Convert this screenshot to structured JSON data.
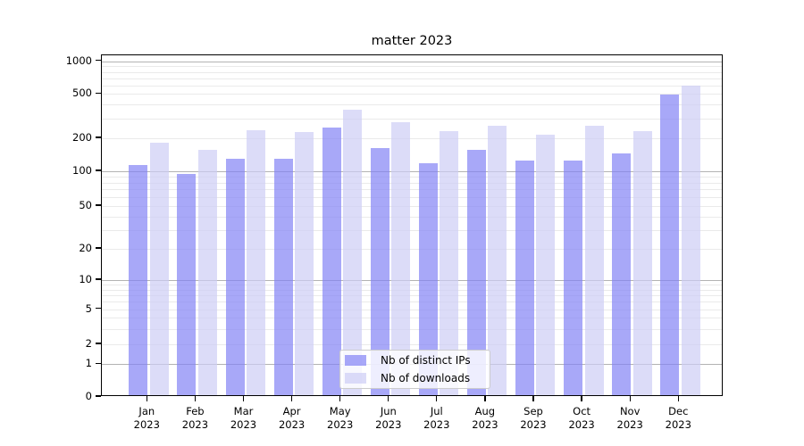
{
  "chart_data": {
    "type": "bar",
    "title": "matter 2023",
    "xlabel": "",
    "ylabel": "",
    "yscale": "symlog",
    "ylim": [
      0,
      1000
    ],
    "grid": true,
    "legend_position": "lower center",
    "y_ticks": [
      0,
      1,
      2,
      5,
      10,
      20,
      50,
      100,
      200,
      500,
      1000
    ],
    "y_minor_gridlines": [
      2,
      3,
      4,
      5,
      6,
      7,
      8,
      9,
      20,
      30,
      40,
      50,
      60,
      70,
      80,
      90,
      200,
      300,
      400,
      500,
      600,
      700,
      800,
      900
    ],
    "y_major_gridlines": [
      1,
      10,
      100,
      1000
    ],
    "categories": [
      "Jan 2023",
      "Feb 2023",
      "Mar 2023",
      "Apr 2023",
      "May 2023",
      "Jun 2023",
      "Jul 2023",
      "Aug 2023",
      "Sep 2023",
      "Oct 2023",
      "Nov 2023",
      "Dec 2023"
    ],
    "series": [
      {
        "name": "Nb of distinct IPs",
        "color": "rgba(131,131,245,0.7)",
        "values": [
          110,
          92,
          125,
          125,
          239,
          158,
          114,
          150,
          121,
          121,
          141,
          478
        ]
      },
      {
        "name": "Nb of downloads",
        "color": "rgba(205,205,245,0.7)",
        "values": [
          176,
          150,
          229,
          218,
          346,
          267,
          225,
          248,
          209,
          251,
          225,
          578
        ]
      }
    ],
    "colors": {
      "grid_major": "#b3b3b3",
      "grid_minor": "#eaeaea",
      "axis": "#000000",
      "background": "#ffffff"
    }
  }
}
